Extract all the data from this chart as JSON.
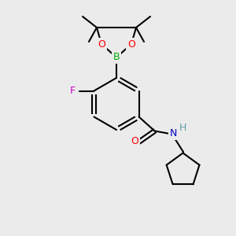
{
  "background_color": "#ebebeb",
  "bond_color": "#000000",
  "bond_width": 1.5,
  "atom_colors": {
    "C": "#000000",
    "H": "#5a9ea0",
    "O": "#ff0000",
    "N": "#0000cc",
    "F": "#cc00cc",
    "B": "#00aa00"
  },
  "figsize": [
    3.0,
    3.0
  ],
  "dpi": 100
}
